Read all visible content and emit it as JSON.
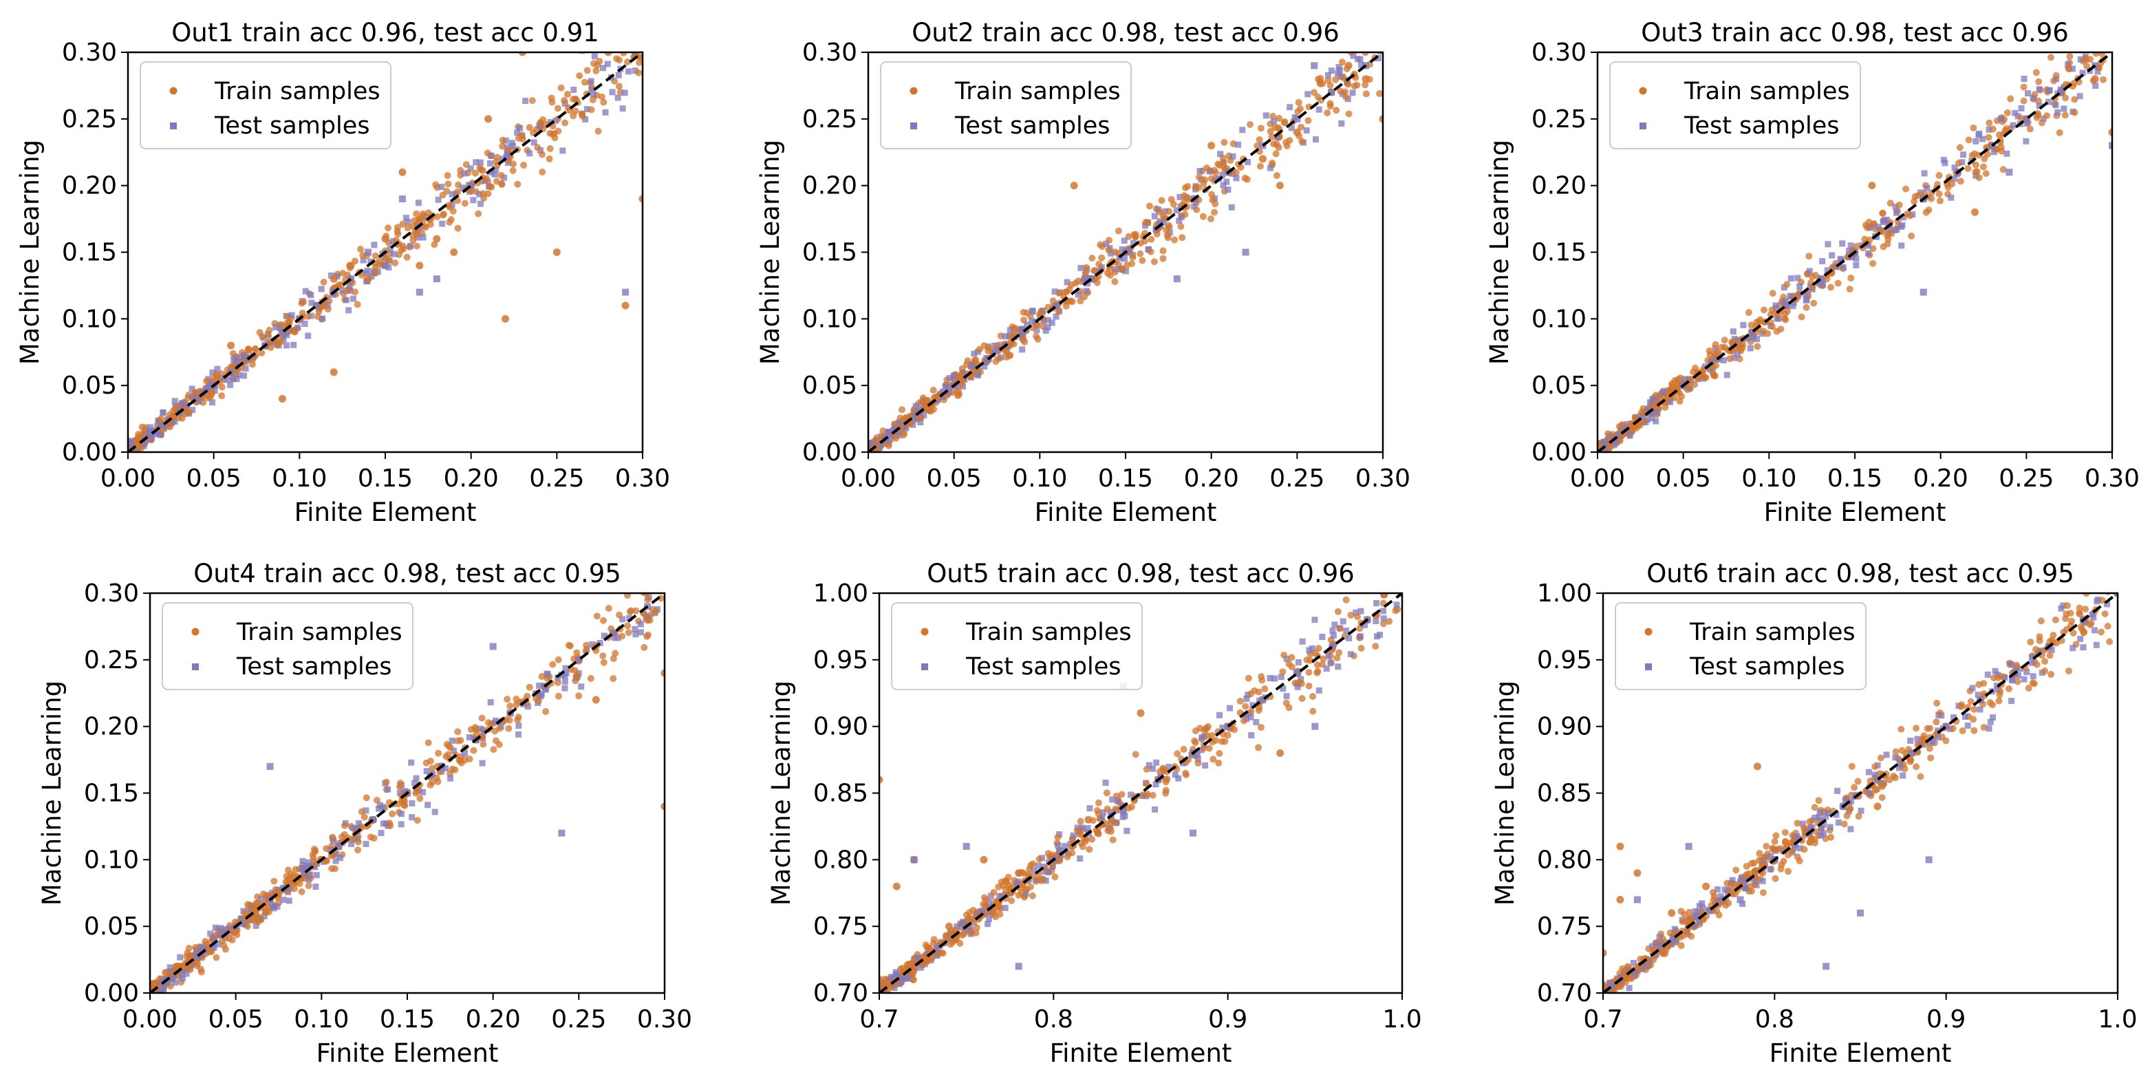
{
  "figure": {
    "train_color": "#D2762E",
    "test_color": "#8079BD",
    "identity_line_color": "#000000"
  },
  "chart_data": [
    {
      "type": "scatter",
      "title": "Out1 train acc  0.96, test acc  0.91",
      "xlabel": "Finite Element",
      "ylabel": "Machine Learning",
      "xlim": [
        0.0,
        0.3
      ],
      "ylim": [
        0.0,
        0.3
      ],
      "xticks": [
        "0.00",
        "0.05",
        "0.10",
        "0.15",
        "0.20",
        "0.25",
        "0.30"
      ],
      "yticks": [
        "0.00",
        "0.05",
        "0.10",
        "0.15",
        "0.20",
        "0.25",
        "0.30"
      ],
      "legend": [
        "Train samples",
        "Test samples"
      ],
      "legend_position": "top-left",
      "reference_line": "y = x",
      "series": [
        {
          "name": "Train samples",
          "marker": "circle",
          "x": [
            0.01,
            0.02,
            0.03,
            0.04,
            0.05,
            0.06,
            0.07,
            0.08,
            0.09,
            0.1,
            0.11,
            0.12,
            0.13,
            0.14,
            0.15,
            0.16,
            0.17,
            0.19,
            0.2,
            0.22,
            0.23,
            0.25,
            0.28,
            0.3,
            0.29,
            0.18,
            0.21,
            0.12,
            0.09,
            0.06
          ],
          "y": [
            0.01,
            0.02,
            0.03,
            0.04,
            0.05,
            0.06,
            0.07,
            0.08,
            0.09,
            0.1,
            0.11,
            0.13,
            0.14,
            0.13,
            0.16,
            0.21,
            0.14,
            0.15,
            0.2,
            0.1,
            0.3,
            0.15,
            0.3,
            0.19,
            0.11,
            0.16,
            0.25,
            0.06,
            0.04,
            0.08
          ]
        },
        {
          "name": "Test samples",
          "marker": "square",
          "x": [
            0.01,
            0.02,
            0.03,
            0.04,
            0.05,
            0.06,
            0.07,
            0.08,
            0.09,
            0.1,
            0.11,
            0.12,
            0.13,
            0.14,
            0.15,
            0.17,
            0.18,
            0.2,
            0.29,
            0.16
          ],
          "y": [
            0.01,
            0.02,
            0.03,
            0.04,
            0.05,
            0.06,
            0.07,
            0.08,
            0.09,
            0.1,
            0.11,
            0.12,
            0.13,
            0.15,
            0.14,
            0.12,
            0.13,
            0.2,
            0.12,
            0.19
          ]
        }
      ]
    },
    {
      "type": "scatter",
      "title": "Out2 train acc  0.98, test acc  0.96",
      "xlabel": "Finite Element",
      "ylabel": "Machine Learning",
      "xlim": [
        0.0,
        0.3
      ],
      "ylim": [
        0.0,
        0.3
      ],
      "xticks": [
        "0.00",
        "0.05",
        "0.10",
        "0.15",
        "0.20",
        "0.25",
        "0.30"
      ],
      "yticks": [
        "0.00",
        "0.05",
        "0.10",
        "0.15",
        "0.20",
        "0.25",
        "0.30"
      ],
      "legend": [
        "Train samples",
        "Test samples"
      ],
      "legend_position": "top-left",
      "reference_line": "y = x",
      "series": [
        {
          "name": "Train samples",
          "marker": "circle",
          "x": [
            0.01,
            0.03,
            0.05,
            0.07,
            0.09,
            0.11,
            0.13,
            0.15,
            0.17,
            0.19,
            0.21,
            0.23,
            0.25,
            0.27,
            0.29,
            0.3,
            0.12,
            0.2,
            0.24,
            0.28
          ],
          "y": [
            0.01,
            0.03,
            0.05,
            0.07,
            0.09,
            0.11,
            0.13,
            0.15,
            0.17,
            0.19,
            0.21,
            0.22,
            0.24,
            0.27,
            0.28,
            0.25,
            0.2,
            0.23,
            0.2,
            0.29
          ]
        },
        {
          "name": "Test samples",
          "marker": "square",
          "x": [
            0.01,
            0.03,
            0.05,
            0.07,
            0.09,
            0.11,
            0.13,
            0.15,
            0.17,
            0.19,
            0.21,
            0.23,
            0.25,
            0.27,
            0.29,
            0.22,
            0.18,
            0.26
          ],
          "y": [
            0.01,
            0.03,
            0.05,
            0.07,
            0.09,
            0.11,
            0.13,
            0.15,
            0.17,
            0.19,
            0.21,
            0.23,
            0.25,
            0.27,
            0.29,
            0.15,
            0.13,
            0.29
          ]
        }
      ]
    },
    {
      "type": "scatter",
      "title": "Out3 train acc  0.98, test acc  0.96",
      "xlabel": "Finite Element",
      "ylabel": "Machine Learning",
      "xlim": [
        0.0,
        0.3
      ],
      "ylim": [
        0.0,
        0.3
      ],
      "xticks": [
        "0.00",
        "0.05",
        "0.10",
        "0.15",
        "0.20",
        "0.25",
        "0.30"
      ],
      "yticks": [
        "0.00",
        "0.05",
        "0.10",
        "0.15",
        "0.20",
        "0.25",
        "0.30"
      ],
      "legend": [
        "Train samples",
        "Test samples"
      ],
      "legend_position": "top-left",
      "reference_line": "y = x",
      "series": [
        {
          "name": "Train samples",
          "marker": "circle",
          "x": [
            0.01,
            0.03,
            0.05,
            0.07,
            0.09,
            0.11,
            0.13,
            0.15,
            0.17,
            0.19,
            0.21,
            0.23,
            0.25,
            0.27,
            0.29,
            0.3,
            0.16,
            0.22
          ],
          "y": [
            0.01,
            0.03,
            0.05,
            0.07,
            0.09,
            0.11,
            0.13,
            0.15,
            0.17,
            0.19,
            0.21,
            0.23,
            0.25,
            0.27,
            0.28,
            0.24,
            0.2,
            0.18
          ]
        },
        {
          "name": "Test samples",
          "marker": "square",
          "x": [
            0.01,
            0.03,
            0.05,
            0.07,
            0.09,
            0.11,
            0.13,
            0.15,
            0.17,
            0.19,
            0.21,
            0.23,
            0.25,
            0.27,
            0.29,
            0.3,
            0.19,
            0.24
          ],
          "y": [
            0.01,
            0.03,
            0.05,
            0.07,
            0.09,
            0.11,
            0.13,
            0.15,
            0.17,
            0.19,
            0.21,
            0.23,
            0.25,
            0.27,
            0.29,
            0.23,
            0.12,
            0.21
          ]
        }
      ]
    },
    {
      "type": "scatter",
      "title": "Out4 train acc  0.98, test acc  0.95",
      "xlabel": "Finite Element",
      "ylabel": "Machine Learning",
      "xlim": [
        0.0,
        0.3
      ],
      "ylim": [
        0.0,
        0.3
      ],
      "xticks": [
        "0.00",
        "0.05",
        "0.10",
        "0.15",
        "0.20",
        "0.25",
        "0.30"
      ],
      "yticks": [
        "0.00",
        "0.05",
        "0.10",
        "0.15",
        "0.20",
        "0.25",
        "0.30"
      ],
      "legend": [
        "Train samples",
        "Test samples"
      ],
      "legend_position": "top-left",
      "reference_line": "y = x",
      "series": [
        {
          "name": "Train samples",
          "marker": "circle",
          "x": [
            0.01,
            0.03,
            0.05,
            0.07,
            0.09,
            0.11,
            0.13,
            0.15,
            0.17,
            0.19,
            0.21,
            0.23,
            0.25,
            0.27,
            0.29,
            0.3,
            0.3,
            0.26
          ],
          "y": [
            0.01,
            0.03,
            0.05,
            0.07,
            0.09,
            0.11,
            0.13,
            0.15,
            0.17,
            0.19,
            0.21,
            0.23,
            0.25,
            0.27,
            0.28,
            0.14,
            0.24,
            0.22
          ]
        },
        {
          "name": "Test samples",
          "marker": "square",
          "x": [
            0.01,
            0.03,
            0.05,
            0.07,
            0.09,
            0.11,
            0.13,
            0.15,
            0.17,
            0.19,
            0.21,
            0.23,
            0.25,
            0.27,
            0.29,
            0.2,
            0.07,
            0.24
          ],
          "y": [
            0.01,
            0.03,
            0.05,
            0.07,
            0.09,
            0.11,
            0.13,
            0.15,
            0.17,
            0.19,
            0.21,
            0.23,
            0.25,
            0.27,
            0.29,
            0.26,
            0.17,
            0.12
          ]
        }
      ]
    },
    {
      "type": "scatter",
      "title": "Out5 train acc  0.98, test acc  0.96",
      "xlabel": "Finite Element",
      "ylabel": "Machine Learning",
      "xlim": [
        0.7,
        1.0
      ],
      "ylim": [
        0.7,
        1.0
      ],
      "xticks": [
        "0.7",
        "0.8",
        "0.9",
        "1.0"
      ],
      "yticks": [
        "0.70",
        "0.75",
        "0.80",
        "0.85",
        "0.90",
        "0.95",
        "1.00"
      ],
      "legend": [
        "Train samples",
        "Test samples"
      ],
      "legend_position": "top-left",
      "reference_line": "y = x",
      "series": [
        {
          "name": "Train samples",
          "marker": "circle",
          "x": [
            0.7,
            0.71,
            0.72,
            0.74,
            0.76,
            0.78,
            0.8,
            0.82,
            0.84,
            0.86,
            0.88,
            0.9,
            0.92,
            0.94,
            0.96,
            0.98,
            1.0,
            0.7,
            0.85,
            0.93
          ],
          "y": [
            0.71,
            0.78,
            0.8,
            0.75,
            0.8,
            0.79,
            0.8,
            0.83,
            0.84,
            0.86,
            0.88,
            0.9,
            0.92,
            0.94,
            0.96,
            0.98,
            1.0,
            0.86,
            0.91,
            0.88
          ]
        },
        {
          "name": "Test samples",
          "marker": "square",
          "x": [
            0.72,
            0.75,
            0.78,
            0.8,
            0.82,
            0.84,
            0.86,
            0.88,
            0.9,
            0.92,
            0.94,
            0.96,
            0.98,
            1.0,
            0.84,
            0.88,
            0.95
          ],
          "y": [
            0.8,
            0.81,
            0.72,
            0.8,
            0.82,
            0.84,
            0.86,
            0.88,
            0.9,
            0.92,
            0.94,
            0.96,
            0.98,
            1.0,
            0.93,
            0.82,
            0.9
          ]
        }
      ]
    },
    {
      "type": "scatter",
      "title": "Out6 train acc  0.98, test acc  0.95",
      "xlabel": "Finite Element",
      "ylabel": "Machine Learning",
      "xlim": [
        0.7,
        1.0
      ],
      "ylim": [
        0.7,
        1.0
      ],
      "xticks": [
        "0.7",
        "0.8",
        "0.9",
        "1.0"
      ],
      "yticks": [
        "0.70",
        "0.75",
        "0.80",
        "0.85",
        "0.90",
        "0.95",
        "1.00"
      ],
      "legend": [
        "Train samples",
        "Test samples"
      ],
      "legend_position": "top-left",
      "reference_line": "y = x",
      "series": [
        {
          "name": "Train samples",
          "marker": "circle",
          "x": [
            0.7,
            0.71,
            0.72,
            0.74,
            0.76,
            0.78,
            0.8,
            0.82,
            0.84,
            0.86,
            0.88,
            0.9,
            0.92,
            0.94,
            0.96,
            0.98,
            1.0,
            0.71,
            0.79,
            0.86
          ],
          "y": [
            0.73,
            0.77,
            0.79,
            0.76,
            0.78,
            0.78,
            0.8,
            0.82,
            0.84,
            0.86,
            0.88,
            0.9,
            0.92,
            0.94,
            0.96,
            0.98,
            1.0,
            0.81,
            0.87,
            0.84
          ]
        },
        {
          "name": "Test samples",
          "marker": "square",
          "x": [
            0.72,
            0.75,
            0.78,
            0.8,
            0.82,
            0.84,
            0.86,
            0.88,
            0.9,
            0.92,
            0.94,
            0.96,
            0.98,
            1.0,
            0.85,
            0.83,
            0.89
          ],
          "y": [
            0.77,
            0.81,
            0.77,
            0.8,
            0.82,
            0.84,
            0.86,
            0.88,
            0.9,
            0.92,
            0.94,
            0.96,
            0.98,
            1.0,
            0.76,
            0.72,
            0.8
          ]
        }
      ]
    }
  ]
}
